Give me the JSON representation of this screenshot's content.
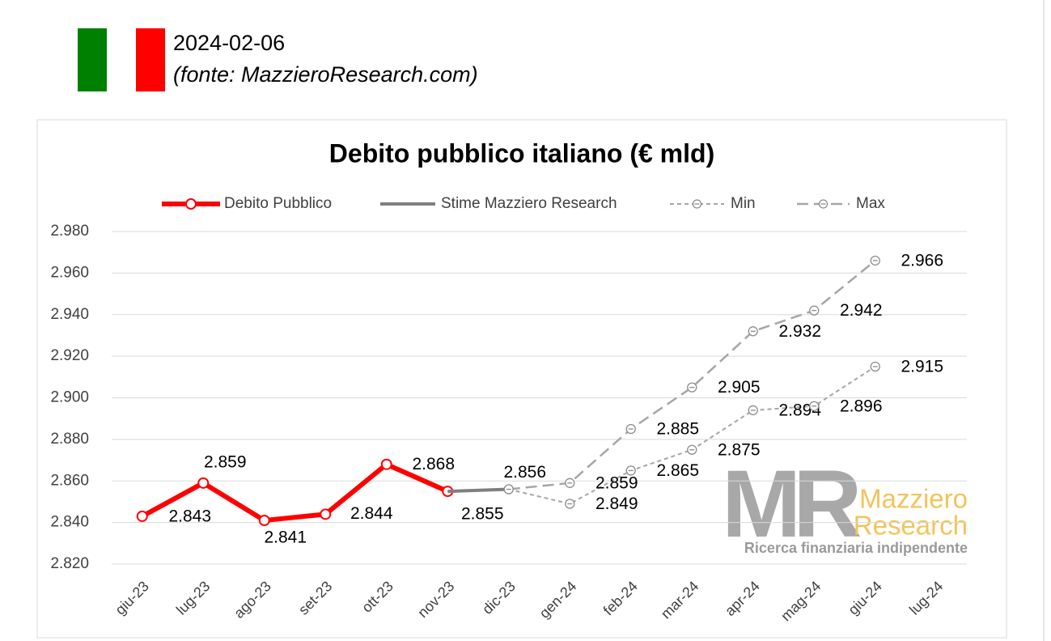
{
  "header": {
    "date": "2024-02-06",
    "source": "(fonte: MazzieroResearch.com)"
  },
  "chart_data": {
    "type": "line",
    "title": "Debito pubblico italiano (€ mld)",
    "categories": [
      "giu-23",
      "lug-23",
      "ago-23",
      "set-23",
      "ott-23",
      "nov-23",
      "dic-23",
      "gen-24",
      "feb-24",
      "mar-24",
      "apr-24",
      "mag-24",
      "giu-24",
      "lug-24"
    ],
    "series": [
      {
        "name": "Debito Pubblico",
        "color": "#ff0000",
        "values": [
          2843,
          2859,
          2841,
          2844,
          2868,
          2855,
          null,
          null,
          null,
          null,
          null,
          null,
          null,
          null
        ],
        "value_labels": [
          "2.843",
          "2.859",
          "2.841",
          "2.844",
          "2.868",
          "2.855",
          null,
          null,
          null,
          null,
          null,
          null,
          null,
          null
        ]
      },
      {
        "name": "Stime Mazziero Research",
        "color": "#7f7f7f",
        "values": [
          null,
          null,
          null,
          null,
          null,
          2855,
          2856,
          null,
          null,
          null,
          null,
          null,
          null,
          null
        ],
        "value_labels": [
          null,
          null,
          null,
          null,
          null,
          null,
          "2.856",
          null,
          null,
          null,
          null,
          null,
          null,
          null
        ]
      },
      {
        "name": "Min",
        "color": "#a6a6a6",
        "values": [
          null,
          null,
          null,
          null,
          null,
          null,
          2856,
          2849,
          2865,
          2875,
          2894,
          2896,
          2915,
          null
        ],
        "value_labels": [
          null,
          null,
          null,
          null,
          null,
          null,
          null,
          "2.849",
          "2.865",
          "2.875",
          "2.894",
          "2.896",
          "2.915",
          null
        ]
      },
      {
        "name": "Max",
        "color": "#a6a6a6",
        "values": [
          null,
          null,
          null,
          null,
          null,
          null,
          2856,
          2859,
          2885,
          2905,
          2932,
          2942,
          2966,
          null
        ],
        "value_labels": [
          null,
          null,
          null,
          null,
          null,
          null,
          null,
          "2.859",
          "2.885",
          "2.905",
          "2.932",
          "2.942",
          "2.966",
          null
        ]
      }
    ],
    "ylim": [
      2820,
      2980
    ],
    "yticks": [
      {
        "value": 2820,
        "label": "2.820"
      },
      {
        "value": 2840,
        "label": "2.840"
      },
      {
        "value": 2860,
        "label": "2.860"
      },
      {
        "value": 2880,
        "label": "2.880"
      },
      {
        "value": 2900,
        "label": "2.900"
      },
      {
        "value": 2920,
        "label": "2.920"
      },
      {
        "value": 2940,
        "label": "2.940"
      },
      {
        "value": 2960,
        "label": "2.960"
      },
      {
        "value": 2980,
        "label": "2.980"
      }
    ],
    "grid": true,
    "legend": "top"
  },
  "watermark": {
    "logo": "MR",
    "name": "Mazziero",
    "name2": "Research",
    "tagline": "Ricerca finanziaria indipendente"
  }
}
